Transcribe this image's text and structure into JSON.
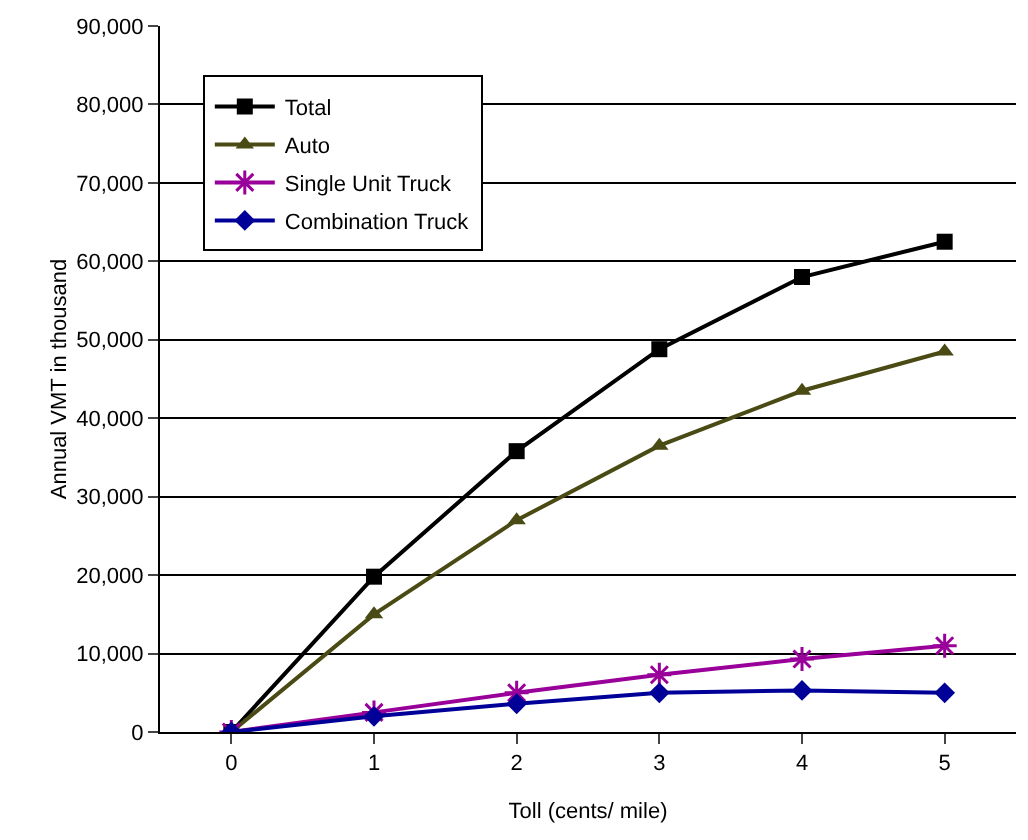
{
  "chart_data": {
    "type": "line",
    "xlabel": "Toll (cents/ mile)",
    "ylabel": "Annual VMT in thousand",
    "x": [
      0,
      1,
      2,
      3,
      4,
      5
    ],
    "xlim": [
      -0.5,
      5.5
    ],
    "xticks": [
      0,
      1,
      2,
      3,
      4,
      5
    ],
    "ylim": [
      0,
      90000
    ],
    "yticks": [
      {
        "value": 0,
        "label": "0"
      },
      {
        "value": 10000,
        "label": "10,000"
      },
      {
        "value": 20000,
        "label": "20,000"
      },
      {
        "value": 30000,
        "label": "30,000"
      },
      {
        "value": 40000,
        "label": "40,000"
      },
      {
        "value": 50000,
        "label": "50,000"
      },
      {
        "value": 60000,
        "label": "60,000"
      },
      {
        "value": 70000,
        "label": "70,000"
      },
      {
        "value": 80000,
        "label": "80,000"
      },
      {
        "value": 90000,
        "label": "90,000"
      }
    ],
    "grid": "y",
    "legend": "top left",
    "line_style": "solid",
    "series": [
      {
        "name": "Total",
        "color": "#000000",
        "marker": "square",
        "values": [
          0,
          19800,
          35800,
          48800,
          58000,
          62500
        ]
      },
      {
        "name": "Auto",
        "color": "#4a4a14",
        "marker": "triangle",
        "values": [
          0,
          15000,
          27000,
          36500,
          43500,
          48500
        ]
      },
      {
        "name": "Single Unit Truck",
        "color": "#990099",
        "marker": "cross",
        "values": [
          0,
          2500,
          5000,
          7300,
          9300,
          11000
        ]
      },
      {
        "name": "Combination Truck",
        "color": "#000099",
        "marker": "diamond",
        "values": [
          0,
          2000,
          3600,
          5000,
          5300,
          5000
        ]
      }
    ]
  }
}
